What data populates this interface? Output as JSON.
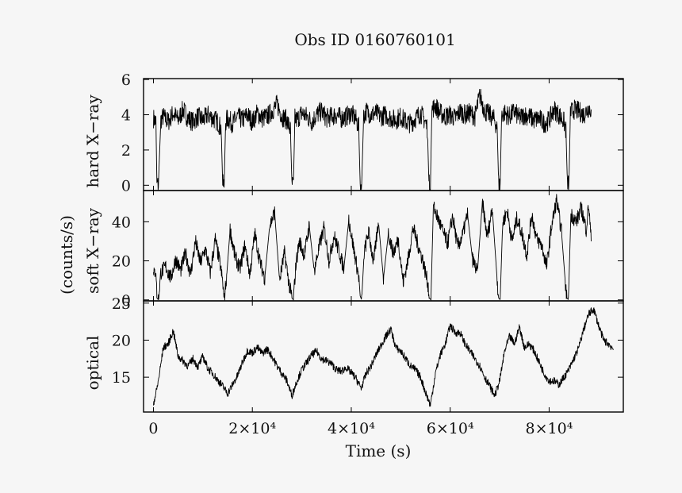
{
  "chart_data": {
    "title": "Obs ID 0160760101",
    "type": "line",
    "x_axis": {
      "label": "Time (s)",
      "range": [
        -2000,
        95000
      ],
      "ticks": [
        {
          "value": 0,
          "label": "0"
        },
        {
          "value": 20000,
          "label": "2×10⁴"
        },
        {
          "value": 40000,
          "label": "4×10⁴"
        },
        {
          "value": 60000,
          "label": "6×10⁴"
        },
        {
          "value": 80000,
          "label": "8×10⁴"
        }
      ]
    },
    "shared_ylabel": "(counts/s)",
    "panels": [
      {
        "id": "hard",
        "ylabel": "hard X−ray",
        "ylim": [
          -0.3,
          6.05
        ],
        "yticks": [
          {
            "value": 0,
            "label": "0"
          },
          {
            "value": 2,
            "label": "2"
          },
          {
            "value": 4,
            "label": "4"
          },
          {
            "value": 6,
            "label": "6"
          }
        ],
        "series": {
          "x": [
            0,
            500,
            700,
            1000,
            1500,
            2000,
            3000,
            4000,
            5000,
            6000,
            7000,
            8000,
            9000,
            10000,
            11000,
            12000,
            13000,
            13700,
            14000,
            14300,
            14600,
            15000,
            16000,
            17000,
            18000,
            19000,
            20000,
            21000,
            22000,
            23000,
            24000,
            25000,
            26000,
            27000,
            27700,
            28000,
            28300,
            28600,
            29000,
            30000,
            31000,
            32000,
            33000,
            34000,
            35000,
            36000,
            37000,
            38000,
            39000,
            40000,
            41000,
            41500,
            41800,
            42100,
            42500,
            43000,
            44000,
            45000,
            46000,
            47000,
            48000,
            49000,
            50000,
            51000,
            52000,
            53000,
            54000,
            55000,
            55400,
            55700,
            56000,
            56300,
            57000,
            58000,
            59000,
            60000,
            61000,
            62000,
            63000,
            64000,
            65000,
            66000,
            67000,
            68000,
            69000,
            69500,
            69800,
            70100,
            70400,
            71000,
            72000,
            73000,
            74000,
            75000,
            76000,
            77000,
            78000,
            79000,
            80000,
            81000,
            82000,
            83000,
            83400,
            83700,
            84000,
            84300,
            85000,
            86000,
            87000,
            88000,
            88500
          ],
          "y": [
            3.8,
            3.6,
            0.1,
            0.0,
            3.7,
            3.9,
            3.6,
            4.1,
            3.7,
            4.3,
            3.8,
            3.6,
            3.9,
            3.7,
            4.0,
            3.8,
            3.6,
            3.2,
            0.05,
            0.0,
            3.6,
            3.8,
            3.5,
            3.9,
            3.7,
            4.0,
            3.6,
            4.1,
            3.8,
            3.9,
            4.2,
            4.6,
            3.9,
            3.7,
            3.1,
            0.05,
            0.0,
            3.8,
            3.7,
            4.1,
            3.9,
            3.6,
            4.0,
            4.2,
            3.8,
            3.9,
            4.0,
            3.8,
            3.9,
            4.1,
            3.7,
            3.3,
            0.05,
            0.0,
            3.9,
            4.2,
            4.0,
            4.1,
            3.9,
            4.0,
            3.8,
            3.7,
            3.9,
            3.6,
            3.5,
            3.8,
            4.1,
            3.6,
            3.2,
            0.05,
            0.0,
            4.3,
            4.5,
            4.1,
            3.9,
            4.0,
            3.8,
            4.2,
            4.0,
            4.1,
            3.9,
            5.1,
            4.2,
            4.0,
            3.7,
            3.2,
            0.05,
            0.0,
            4.0,
            4.1,
            3.9,
            4.2,
            3.8,
            4.0,
            3.9,
            3.7,
            3.8,
            3.5,
            3.7,
            4.3,
            4.0,
            3.6,
            3.1,
            0.05,
            0.0,
            4.1,
            4.3,
            4.2,
            4.0,
            4.4,
            4.3
          ]
        }
      },
      {
        "id": "soft",
        "ylabel": "soft X−ray",
        "ylim": [
          -0.5,
          56
        ],
        "yticks": [
          {
            "value": 0,
            "label": "0"
          },
          {
            "value": 20,
            "label": "20"
          },
          {
            "value": 40,
            "label": "40"
          }
        ],
        "series": {
          "x": [
            0,
            500,
            700,
            1000,
            1500,
            2500,
            3500,
            4500,
            5500,
            6500,
            7500,
            8500,
            9500,
            10500,
            11500,
            12500,
            13500,
            14000,
            14300,
            14800,
            15500,
            16500,
            17500,
            18500,
            19500,
            20500,
            21500,
            22500,
            23500,
            24500,
            25500,
            26500,
            27500,
            28000,
            28300,
            28800,
            29500,
            30500,
            31500,
            32500,
            33500,
            34500,
            35500,
            36500,
            37500,
            38500,
            39500,
            40500,
            41500,
            41800,
            42100,
            42600,
            43500,
            44500,
            45500,
            46500,
            47500,
            48500,
            49500,
            50500,
            51500,
            52500,
            53500,
            54500,
            55500,
            55800,
            56100,
            56600,
            57500,
            58500,
            59500,
            60500,
            61500,
            62500,
            63500,
            64500,
            65500,
            66500,
            67500,
            68500,
            69500,
            69800,
            70100,
            70600,
            71500,
            72500,
            73500,
            74500,
            75500,
            76500,
            77500,
            78500,
            79500,
            80500,
            81500,
            82500,
            83300,
            83600,
            83900,
            84400,
            85500,
            86500,
            87500,
            88000,
            88500
          ],
          "y": [
            12,
            16,
            1,
            0,
            14,
            17,
            11,
            21,
            15,
            24,
            13,
            30,
            19,
            26,
            14,
            31,
            18,
            9,
            0,
            12,
            36,
            22,
            16,
            28,
            13,
            34,
            20,
            11,
            38,
            45,
            10,
            24,
            7,
            1,
            0,
            18,
            30,
            23,
            38,
            15,
            27,
            37,
            20,
            33,
            25,
            16,
            41,
            26,
            12,
            2,
            0,
            24,
            35,
            19,
            40,
            11,
            34,
            24,
            31,
            9,
            21,
            37,
            28,
            20,
            8,
            1,
            0,
            48,
            42,
            35,
            29,
            43,
            27,
            33,
            44,
            21,
            14,
            50,
            32,
            47,
            10,
            1,
            0,
            39,
            46,
            30,
            42,
            34,
            23,
            44,
            31,
            28,
            17,
            38,
            51,
            35,
            8,
            1,
            0,
            44,
            40,
            47,
            36,
            49,
            30
          ]
        }
      },
      {
        "id": "optical",
        "ylabel": "optical",
        "ylim": [
          10.3,
          25.3
        ],
        "yticks": [
          {
            "value": 15,
            "label": "15"
          },
          {
            "value": 20,
            "label": "20"
          },
          {
            "value": 25,
            "label": "25"
          }
        ],
        "series": {
          "x": [
            0,
            500,
            1000,
            2000,
            3000,
            4000,
            5000,
            6000,
            7000,
            8000,
            9000,
            10000,
            11000,
            12000,
            13000,
            14000,
            15000,
            16000,
            17000,
            18000,
            19000,
            20000,
            21000,
            22000,
            23000,
            24000,
            25000,
            26000,
            27000,
            28000,
            29000,
            30000,
            31000,
            32000,
            33000,
            34000,
            35000,
            36000,
            37000,
            38000,
            39000,
            40000,
            41000,
            42000,
            43000,
            44000,
            45000,
            46000,
            47000,
            48000,
            49000,
            50000,
            51000,
            52000,
            53000,
            54000,
            55000,
            56000,
            57000,
            58000,
            59000,
            60000,
            61000,
            62000,
            63000,
            64000,
            65000,
            66000,
            67000,
            68000,
            69000,
            70000,
            71000,
            72000,
            73000,
            74000,
            75000,
            76000,
            77000,
            78000,
            79000,
            80000,
            81000,
            82000,
            83000,
            84000,
            85000,
            86000,
            87000,
            88000,
            89000,
            90000,
            91000,
            92000,
            93000
          ],
          "y": [
            11.5,
            12.8,
            14.5,
            19,
            19.5,
            21.3,
            17.8,
            17.2,
            16.5,
            17.5,
            16.4,
            17.8,
            16.2,
            15.5,
            14.6,
            13.8,
            12.8,
            14,
            15.2,
            17,
            18.6,
            18.3,
            19,
            18.2,
            18.8,
            17.8,
            16.5,
            15.5,
            14.5,
            12.5,
            14.5,
            16,
            17,
            18,
            18.5,
            17.5,
            17.2,
            16.8,
            16,
            15.8,
            16.3,
            15.6,
            14.8,
            13.5,
            15.5,
            16.5,
            18,
            19.3,
            20.5,
            21.5,
            19,
            18.5,
            17.5,
            16.5,
            16,
            15,
            13,
            11.2,
            15.5,
            18,
            19.5,
            22,
            21,
            21,
            19.5,
            18.5,
            17.5,
            16.5,
            15,
            13.8,
            12.5,
            14.5,
            18.5,
            20.5,
            19.5,
            21.8,
            19,
            19.5,
            18.5,
            17,
            15.5,
            14.5,
            14.5,
            14,
            15,
            16,
            17.5,
            19,
            21.5,
            23.5,
            24.2,
            22,
            20,
            19.5,
            18.8
          ]
        }
      }
    ]
  }
}
